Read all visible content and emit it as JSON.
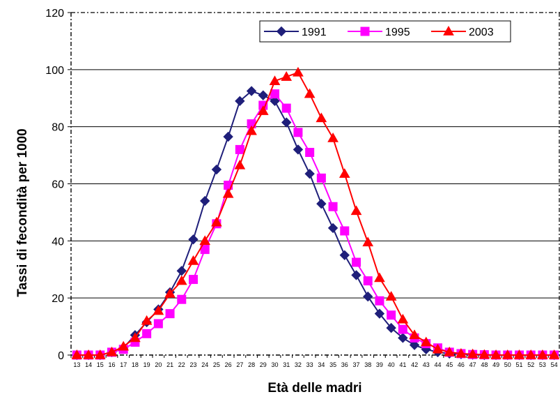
{
  "chart_data": {
    "type": "line",
    "title": "",
    "xlabel": "Età delle madri",
    "ylabel": "Tassi di fecondità per 1000",
    "ylim": [
      0,
      120
    ],
    "yticks": [
      0,
      20,
      40,
      60,
      80,
      100,
      120
    ],
    "grid": true,
    "legend_position": "top-right",
    "x": [
      13,
      14,
      15,
      16,
      17,
      18,
      19,
      20,
      21,
      22,
      23,
      24,
      25,
      26,
      27,
      28,
      29,
      30,
      31,
      32,
      33,
      34,
      35,
      36,
      37,
      38,
      39,
      40,
      41,
      42,
      43,
      44,
      45,
      46,
      47,
      48,
      49,
      50,
      51,
      52,
      53,
      54
    ],
    "series": [
      {
        "name": "1991",
        "color": "#1f1f7a",
        "marker": "diamond",
        "values": [
          0,
          0,
          0,
          1,
          2.5,
          7,
          11.5,
          16,
          22,
          29.5,
          40.5,
          54,
          65,
          76.5,
          89,
          92.5,
          91,
          89,
          81.5,
          72,
          63.5,
          53,
          44.5,
          35,
          28,
          20.5,
          14.5,
          9.5,
          6,
          3.5,
          2,
          1,
          0.5,
          0.3,
          0.1,
          0,
          0,
          0,
          0,
          0,
          0,
          0
        ]
      },
      {
        "name": "1995",
        "color": "#ff00ff",
        "marker": "square",
        "values": [
          0,
          0,
          0,
          1,
          2,
          4.5,
          7.5,
          11,
          14.5,
          19.5,
          26.5,
          37,
          46,
          59.5,
          72,
          81,
          87.5,
          91.5,
          86.5,
          78,
          71,
          62,
          52,
          43.5,
          32.5,
          26,
          19,
          14,
          9,
          6,
          4,
          2.5,
          1,
          0.5,
          0.2,
          0.1,
          0,
          0,
          0,
          0,
          0,
          0
        ]
      },
      {
        "name": "2003",
        "color": "#ff0000",
        "marker": "triangle",
        "values": [
          0,
          0,
          0,
          1,
          3,
          6,
          12,
          15.5,
          21.5,
          26,
          33,
          40,
          46.5,
          56.5,
          66.5,
          78.5,
          85.5,
          96,
          97.5,
          99,
          91.5,
          83,
          76,
          63.5,
          50.5,
          39.5,
          27,
          20.5,
          12.5,
          7,
          4.5,
          2,
          1,
          0.5,
          0.3,
          0.1,
          0,
          0,
          0,
          0,
          0,
          0
        ]
      }
    ]
  }
}
